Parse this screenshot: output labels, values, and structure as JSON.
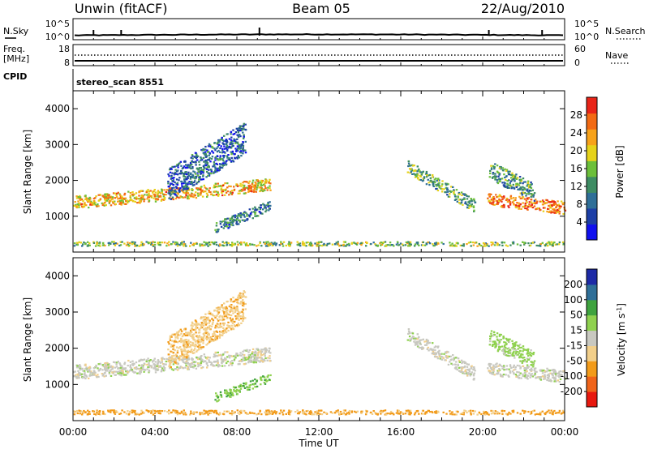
{
  "header": {
    "station": "Unwin (fitACF)",
    "beam": "Beam 05",
    "date": "22/Aug/2010"
  },
  "status_panel_1": {
    "left_label": "N.Sky",
    "right_label": "N.Search",
    "left_ticks": [
      "10^5",
      "10^0"
    ],
    "right_ticks": [
      "10^5",
      "10^0"
    ]
  },
  "status_panel_2": {
    "left_label_line1": "Freq.",
    "left_label_line2": "[MHz]",
    "right_label": "Nave",
    "left_ticks": [
      "18",
      "8"
    ],
    "right_ticks": [
      "60",
      "0"
    ]
  },
  "cpid": {
    "label": "CPID",
    "value": "stereo_scan 8551"
  },
  "chart_data": [
    {
      "type": "heatmap",
      "title": "",
      "parameter": "Power",
      "xlabel": "",
      "ylabel": "Slant Range [km]",
      "x_range_hours": [
        0,
        24
      ],
      "ylim": [
        0,
        4500
      ],
      "y_ticks": [
        1000,
        2000,
        3000,
        4000
      ],
      "colorbar": {
        "label": "Power [dB]",
        "range": [
          0,
          32
        ],
        "ticks": [
          4,
          8,
          12,
          16,
          20,
          24,
          28
        ],
        "colors": [
          "#1010ee",
          "#1d3fa6",
          "#2f6f98",
          "#3e8c63",
          "#6cbf3a",
          "#e6d21a",
          "#f7a21a",
          "#f26a14",
          "#e82418"
        ]
      },
      "features": [
        {
          "start_h": 0.0,
          "end_h": 9.6,
          "start_km": 1400,
          "end_km": 1900,
          "thickness_km": 350,
          "level": 22
        },
        {
          "start_h": 4.6,
          "end_h": 8.4,
          "start_km": 1900,
          "end_km": 3200,
          "thickness_km": 900,
          "level": 8
        },
        {
          "start_h": 6.9,
          "end_h": 9.6,
          "start_km": 700,
          "end_km": 1300,
          "thickness_km": 300,
          "level": 10
        },
        {
          "start_h": 16.3,
          "end_h": 19.6,
          "start_km": 2400,
          "end_km": 1300,
          "thickness_km": 350,
          "level": 14
        },
        {
          "start_h": 20.2,
          "end_h": 24.0,
          "start_km": 1500,
          "end_km": 1250,
          "thickness_km": 350,
          "level": 26
        },
        {
          "start_h": 20.3,
          "end_h": 22.5,
          "start_km": 2300,
          "end_km": 1700,
          "thickness_km": 500,
          "level": 12
        },
        {
          "start_h": 0.0,
          "end_h": 24.0,
          "start_km": 250,
          "end_km": 250,
          "thickness_km": 120,
          "level": 16
        }
      ]
    },
    {
      "type": "heatmap",
      "title": "",
      "parameter": "Velocity",
      "xlabel": "Time UT",
      "ylabel": "Slant Range [km]",
      "x_range_hours": [
        0,
        24
      ],
      "x_ticks": [
        "00:00",
        "04:00",
        "08:00",
        "12:00",
        "16:00",
        "20:00",
        "00:00"
      ],
      "ylim": [
        0,
        4500
      ],
      "y_ticks": [
        1000,
        2000,
        3000,
        4000
      ],
      "colorbar": {
        "label": "Velocity [m s^-1]",
        "bounds": [
          -250,
          -200,
          -100,
          -50,
          -15,
          15,
          50,
          100,
          200,
          250
        ],
        "ticks": [
          200,
          100,
          50,
          15,
          -15,
          -50,
          -100,
          -200
        ],
        "colors": [
          "#e8190f",
          "#f0641a",
          "#f29b1a",
          "#f2cf8a",
          "#c8c8c0",
          "#8fd14f",
          "#3fa33f",
          "#2f6f98",
          "#1d2aa6"
        ]
      },
      "features": [
        {
          "start_h": 0.0,
          "end_h": 9.6,
          "start_km": 1350,
          "end_km": 1850,
          "thickness_km": 400,
          "level": 0
        },
        {
          "start_h": 4.6,
          "end_h": 8.4,
          "start_km": 1900,
          "end_km": 3200,
          "thickness_km": 900,
          "level": -40
        },
        {
          "start_h": 6.9,
          "end_h": 9.6,
          "start_km": 650,
          "end_km": 1200,
          "thickness_km": 250,
          "level": 40
        },
        {
          "start_h": 16.3,
          "end_h": 19.6,
          "start_km": 2400,
          "end_km": 1300,
          "thickness_km": 350,
          "level": 0
        },
        {
          "start_h": 20.2,
          "end_h": 24.0,
          "start_km": 1450,
          "end_km": 1250,
          "thickness_km": 350,
          "level": 0
        },
        {
          "start_h": 20.3,
          "end_h": 22.5,
          "start_km": 2300,
          "end_km": 1700,
          "thickness_km": 500,
          "level": 30
        },
        {
          "start_h": 0.0,
          "end_h": 24.0,
          "start_km": 250,
          "end_km": 250,
          "thickness_km": 120,
          "level": -60
        }
      ]
    }
  ]
}
